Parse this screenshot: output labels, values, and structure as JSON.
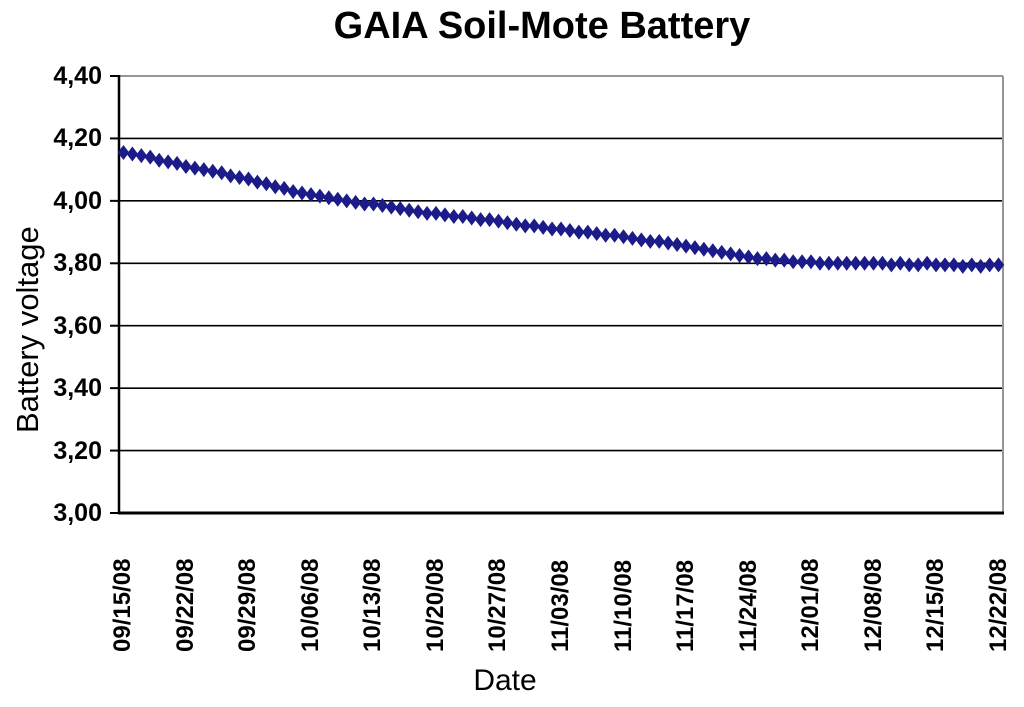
{
  "chart": {
    "title": "GAIA Soil-Mote Battery",
    "y_axis_title": "Battery voltage",
    "x_axis_title": "Date"
  },
  "colors": {
    "series": "#1b1b8a",
    "gridline": "#000000",
    "axis": "#000000",
    "plot_border": "#969696",
    "background": "#ffffff"
  },
  "chart_data": {
    "type": "line",
    "title": "GAIA Soil-Mote Battery",
    "xlabel": "Date",
    "ylabel": "Battery voltage",
    "ylim": [
      3.0,
      4.4
    ],
    "grid": "horizontal",
    "legend": "none",
    "decimal_separator": ",",
    "y_ticks": [
      {
        "value": 4.4,
        "label": "4,40"
      },
      {
        "value": 4.2,
        "label": "4,20"
      },
      {
        "value": 4.0,
        "label": "4,00"
      },
      {
        "value": 3.8,
        "label": "3,80"
      },
      {
        "value": 3.6,
        "label": "3,60"
      },
      {
        "value": 3.4,
        "label": "3,40"
      },
      {
        "value": 3.2,
        "label": "3,20"
      },
      {
        "value": 3.0,
        "label": "3,00"
      }
    ],
    "x_tick_labels": [
      "09/15/08",
      "09/22/08",
      "09/29/08",
      "10/06/08",
      "10/13/08",
      "10/20/08",
      "10/27/08",
      "11/03/08",
      "11/10/08",
      "11/17/08",
      "11/24/08",
      "12/01/08",
      "12/08/08",
      "12/15/08",
      "12/22/08"
    ],
    "x_tick_point_index": [
      0,
      7,
      14,
      21,
      28,
      35,
      42,
      49,
      56,
      63,
      70,
      77,
      84,
      91,
      98
    ],
    "series": [
      {
        "name": "Battery voltage",
        "color": "#1b1b8a",
        "marker": "diamond",
        "cadence": "daily",
        "values": [
          4.155,
          4.15,
          4.145,
          4.14,
          4.13,
          4.125,
          4.12,
          4.11,
          4.105,
          4.1,
          4.095,
          4.09,
          4.08,
          4.075,
          4.07,
          4.06,
          4.055,
          4.045,
          4.04,
          4.03,
          4.025,
          4.02,
          4.015,
          4.01,
          4.005,
          4.0,
          3.995,
          3.99,
          3.99,
          3.985,
          3.98,
          3.975,
          3.97,
          3.965,
          3.96,
          3.96,
          3.955,
          3.95,
          3.95,
          3.945,
          3.94,
          3.94,
          3.935,
          3.93,
          3.925,
          3.92,
          3.92,
          3.915,
          3.91,
          3.91,
          3.905,
          3.9,
          3.9,
          3.895,
          3.89,
          3.89,
          3.885,
          3.88,
          3.875,
          3.87,
          3.87,
          3.865,
          3.86,
          3.855,
          3.85,
          3.845,
          3.84,
          3.835,
          3.83,
          3.825,
          3.82,
          3.815,
          3.815,
          3.81,
          3.81,
          3.805,
          3.805,
          3.805,
          3.8,
          3.8,
          3.8,
          3.8,
          3.8,
          3.8,
          3.8,
          3.8,
          3.795,
          3.8,
          3.795,
          3.795,
          3.8,
          3.795,
          3.795,
          3.795,
          3.79,
          3.795,
          3.79,
          3.795,
          3.795
        ]
      }
    ]
  }
}
